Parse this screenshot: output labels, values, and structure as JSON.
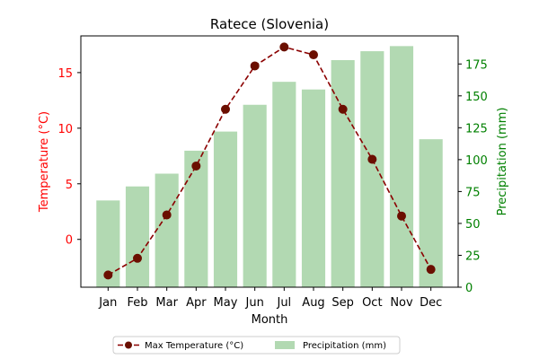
{
  "chart_data": {
    "type": "bar+line",
    "title": "Ratece (Slovenia)",
    "xlabel": "Month",
    "ylabel_left": "Temperature (°C)",
    "ylabel_right": "Precipitation (mm)",
    "categories": [
      "Jan",
      "Feb",
      "Mar",
      "Apr",
      "May",
      "Jun",
      "Jul",
      "Aug",
      "Sep",
      "Oct",
      "Nov",
      "Dec"
    ],
    "left_axis": {
      "ylim": [
        -4.3,
        18.3
      ],
      "ticks": [
        0,
        5,
        10,
        15
      ],
      "color": "#ff0000"
    },
    "right_axis": {
      "ylim": [
        0,
        197
      ],
      "ticks": [
        0,
        25,
        50,
        75,
        100,
        125,
        150,
        175
      ],
      "color": "#008000"
    },
    "series": [
      {
        "name": "Max Temperature (°C)",
        "kind": "line",
        "axis": "left",
        "color": "#8b0000",
        "marker": "circle",
        "linestyle": "dashed",
        "values": [
          -3.2,
          -1.7,
          2.2,
          6.6,
          11.7,
          15.6,
          17.3,
          16.6,
          11.7,
          7.2,
          2.1,
          -2.7
        ]
      },
      {
        "name": "Precipitation (mm)",
        "kind": "bar",
        "axis": "right",
        "color": "#b2d9b2",
        "values": [
          68,
          79,
          89,
          107,
          122,
          143,
          161,
          155,
          178,
          185,
          189,
          116
        ]
      }
    ],
    "legend_position": "bottom-center"
  }
}
